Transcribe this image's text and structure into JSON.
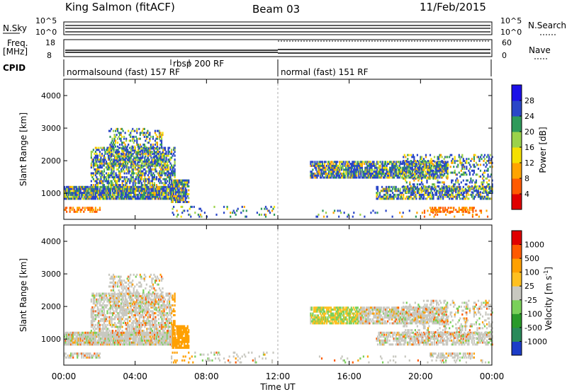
{
  "header": {
    "station": "King Salmon (fitACF)",
    "beam": "Beam 03",
    "date": "11/Feb/2015"
  },
  "panels": {
    "nsky_label": "N.Sky",
    "nsky_ticks": [
      "10^5",
      "10^0"
    ],
    "nsearch_ticks": [
      "10^5",
      "10^0"
    ],
    "nsearch_label": "N.Search",
    "freq_label": "Freq.",
    "freq_unit": "[MHz]",
    "freq_ticks": [
      "18",
      "8"
    ],
    "nave_ticks": [
      "60",
      "0"
    ],
    "nave_label": "Nave",
    "cpid_label": "CPID",
    "cpid_segments": [
      {
        "text": "normalsound (fast) 157 RF"
      },
      {
        "text": "rbsp 200 RF"
      },
      {
        "text": "normal (fast) 151 RF"
      }
    ]
  },
  "chart_data": [
    {
      "type": "heatmap",
      "name": "power",
      "ylabel": "Slant Range [km]",
      "ylim": [
        200,
        4500
      ],
      "y_ticks": [
        "4000",
        "3000",
        "2000",
        "1000"
      ],
      "y_tick_values": [
        4000,
        3000,
        2000,
        1000
      ],
      "colorbar_label": "Power [dB]",
      "colorbar_ticks": [
        "28",
        "24",
        "20",
        "16",
        "12",
        "8",
        "4"
      ],
      "colorbar_colors": [
        "#e00000",
        "#ff5a00",
        "#ffa400",
        "#f5e000",
        "#9bd24a",
        "#2f9a5a",
        "#2a46c8",
        "#1c10e8"
      ]
    },
    {
      "type": "heatmap",
      "name": "velocity",
      "ylabel": "Slant Range [km]",
      "ylim": [
        200,
        4500
      ],
      "y_ticks": [
        "4000",
        "3000",
        "2000",
        "1000"
      ],
      "y_tick_values": [
        4000,
        3000,
        2000,
        1000
      ],
      "colorbar_label": "Velocity [m s",
      "colorbar_label_sup": "-1",
      "colorbar_label_end": "]",
      "colorbar_ticks": [
        "1000",
        "500",
        "100",
        "25",
        "-25",
        "-100",
        "-500",
        "-1000"
      ],
      "colorbar_colors": [
        "#1c3cc8",
        "#2a8a5a",
        "#2a9a2a",
        "#7ad05a",
        "#c8c8c0",
        "#ffc020",
        "#ffa000",
        "#ff5a00",
        "#e00000"
      ]
    }
  ],
  "x_axis": {
    "label": "Time UT",
    "ticks": [
      "00:00",
      "04:00",
      "08:00",
      "12:00",
      "16:00",
      "20:00",
      "00:00"
    ],
    "tick_hours": [
      0,
      4,
      8,
      12,
      16,
      20,
      24
    ],
    "range_hours": [
      0,
      24
    ]
  }
}
